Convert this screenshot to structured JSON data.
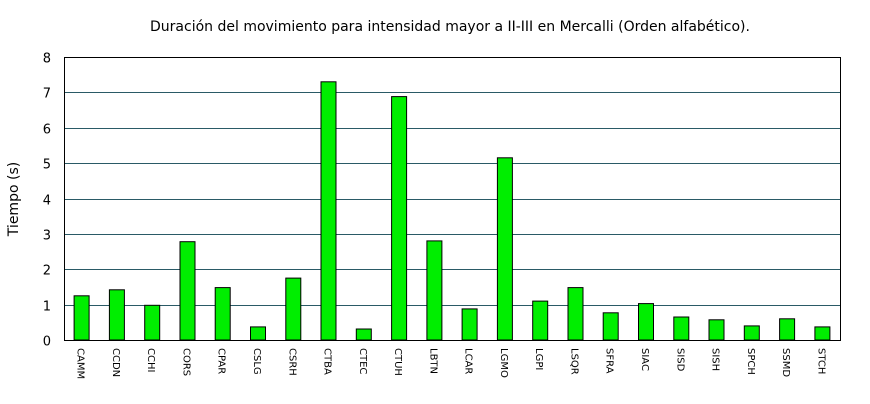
{
  "chart_data": {
    "type": "bar",
    "title": "Duración del movimiento para intensidad mayor a II-III en Mercalli (Orden alfabético).",
    "xlabel": "",
    "ylabel": "Tiempo (s)",
    "ylim": [
      0,
      8
    ],
    "yticks": [
      0,
      1,
      2,
      3,
      4,
      5,
      6,
      7,
      8
    ],
    "grid": true,
    "legend": "none",
    "bar_color": "#00ee00",
    "grid_color": "#2a5a66",
    "categories": [
      "CAMM",
      "CCDN",
      "CCHI",
      "CORS",
      "CPAR",
      "CSLG",
      "CSRH",
      "CTBA",
      "CTEC",
      "CTUH",
      "LBTN",
      "LCAR",
      "LGMO",
      "LGPI",
      "LSQR",
      "SFRA",
      "SIAC",
      "SISD",
      "SISH",
      "SPCH",
      "SSMD",
      "STCH"
    ],
    "values": [
      1.25,
      1.42,
      0.98,
      2.78,
      1.48,
      0.37,
      1.75,
      7.3,
      0.31,
      6.88,
      2.8,
      0.88,
      5.15,
      1.1,
      1.48,
      0.77,
      1.03,
      0.65,
      0.57,
      0.4,
      0.6,
      0.37
    ]
  }
}
